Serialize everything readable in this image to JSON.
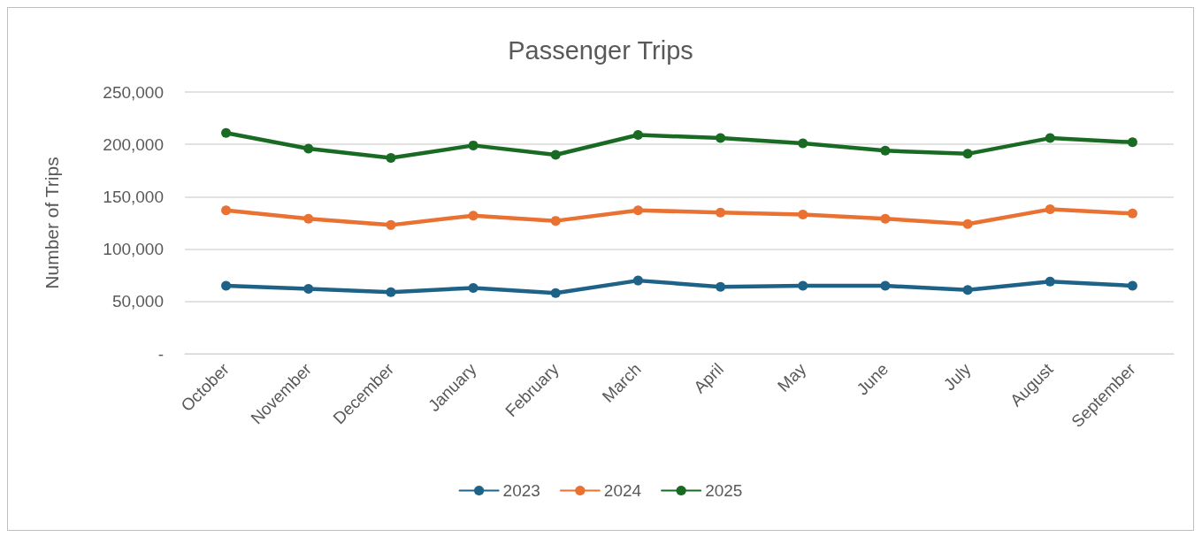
{
  "chart_data": {
    "type": "line",
    "title": "Passenger Trips",
    "ylabel": "Number of Trips",
    "categories": [
      "October",
      "November",
      "December",
      "January",
      "February",
      "March",
      "April",
      "May",
      "June",
      "July",
      "August",
      "September"
    ],
    "series": [
      {
        "name": "2023",
        "color": "#1f6288",
        "values": [
          65000,
          62000,
          59000,
          63000,
          58000,
          70000,
          64000,
          65000,
          65000,
          61000,
          69000,
          65000
        ]
      },
      {
        "name": "2024",
        "color": "#e97132",
        "values": [
          137000,
          129000,
          123000,
          132000,
          127000,
          137000,
          135000,
          133000,
          129000,
          124000,
          138000,
          134000
        ]
      },
      {
        "name": "2025",
        "color": "#196b24",
        "values": [
          211000,
          196000,
          187000,
          199000,
          190000,
          209000,
          206000,
          201000,
          194000,
          191000,
          206000,
          202000
        ]
      }
    ],
    "ylim": [
      0,
      250000
    ],
    "yticks": [
      {
        "value": 0,
        "label": "-"
      },
      {
        "value": 50000,
        "label": "50,000"
      },
      {
        "value": 100000,
        "label": "100,000"
      },
      {
        "value": 150000,
        "label": "150,000"
      },
      {
        "value": 200000,
        "label": "200,000"
      },
      {
        "value": 250000,
        "label": "250,000"
      }
    ],
    "grid": "y",
    "legend": "bottom",
    "marker": "circle",
    "line_style": "solid"
  }
}
